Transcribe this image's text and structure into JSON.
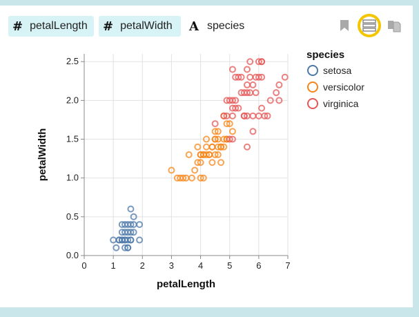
{
  "fields": [
    {
      "type_glyph": "#",
      "name": "petalLength"
    },
    {
      "type_glyph": "#",
      "name": "petalWidth"
    },
    {
      "type_glyph": "A",
      "name": "species"
    }
  ],
  "toolbar": {
    "bookmark_icon": "bookmark-icon",
    "list_icon": "list-view-icon",
    "copy_icon": "copy-icon"
  },
  "chart_data": {
    "type": "scatter",
    "xlabel": "petalLength",
    "ylabel": "petalWidth",
    "xlim": [
      0,
      7
    ],
    "ylim": [
      0,
      2.6
    ],
    "xticks": [
      "0",
      "1",
      "2",
      "3",
      "4",
      "5",
      "6",
      "7"
    ],
    "yticks": [
      "0.0",
      "0.5",
      "1.0",
      "1.5",
      "2.0",
      "2.5"
    ],
    "grid": true,
    "legend": {
      "title": "species",
      "placement": "right"
    },
    "series": [
      {
        "name": "setosa",
        "color": "#4c78a8",
        "points": [
          [
            1.4,
            0.2
          ],
          [
            1.3,
            0.2
          ],
          [
            1.5,
            0.2
          ],
          [
            1.4,
            0.3
          ],
          [
            1.7,
            0.4
          ],
          [
            1.5,
            0.1
          ],
          [
            1.6,
            0.2
          ],
          [
            1.1,
            0.1
          ],
          [
            1.2,
            0.2
          ],
          [
            1.0,
            0.2
          ],
          [
            1.7,
            0.3
          ],
          [
            1.9,
            0.2
          ],
          [
            1.6,
            0.4
          ],
          [
            1.3,
            0.4
          ],
          [
            1.5,
            0.4
          ],
          [
            1.4,
            0.1
          ],
          [
            1.6,
            0.6
          ],
          [
            1.3,
            0.3
          ],
          [
            1.9,
            0.4
          ],
          [
            1.6,
            0.2
          ],
          [
            1.4,
            0.2
          ],
          [
            1.5,
            0.3
          ],
          [
            1.7,
            0.5
          ],
          [
            1.2,
            0.2
          ],
          [
            1.5,
            0.1
          ],
          [
            1.3,
            0.2
          ],
          [
            1.4,
            0.4
          ],
          [
            1.6,
            0.3
          ]
        ]
      },
      {
        "name": "versicolor",
        "color": "#f58518",
        "points": [
          [
            4.7,
            1.4
          ],
          [
            4.5,
            1.5
          ],
          [
            4.9,
            1.5
          ],
          [
            4.0,
            1.3
          ],
          [
            4.6,
            1.5
          ],
          [
            3.3,
            1.0
          ],
          [
            3.9,
            1.4
          ],
          [
            3.5,
            1.0
          ],
          [
            4.2,
            1.5
          ],
          [
            4.0,
            1.0
          ],
          [
            4.7,
            1.4
          ],
          [
            3.6,
            1.3
          ],
          [
            4.4,
            1.4
          ],
          [
            4.5,
            1.5
          ],
          [
            4.1,
            1.0
          ],
          [
            4.8,
            1.8
          ],
          [
            4.0,
            1.3
          ],
          [
            4.9,
            1.5
          ],
          [
            4.7,
            1.2
          ],
          [
            4.3,
            1.3
          ],
          [
            4.4,
            1.4
          ],
          [
            4.8,
            1.4
          ],
          [
            5.0,
            1.7
          ],
          [
            3.8,
            1.1
          ],
          [
            3.7,
            1.0
          ],
          [
            3.9,
            1.2
          ],
          [
            5.1,
            1.6
          ],
          [
            4.5,
            1.6
          ],
          [
            4.6,
            1.4
          ],
          [
            4.4,
            1.2
          ],
          [
            4.1,
            1.3
          ],
          [
            4.0,
            1.2
          ],
          [
            3.0,
            1.1
          ],
          [
            4.2,
            1.3
          ],
          [
            4.1,
            1.3
          ],
          [
            3.4,
            1.0
          ],
          [
            3.2,
            1.0
          ],
          [
            4.3,
            1.3
          ],
          [
            4.6,
            1.3
          ],
          [
            4.9,
            1.7
          ],
          [
            4.5,
            1.3
          ],
          [
            4.6,
            1.6
          ],
          [
            4.2,
            1.4
          ],
          [
            4.8,
            1.5
          ]
        ]
      },
      {
        "name": "virginica",
        "color": "#e45756",
        "points": [
          [
            6.0,
            2.5
          ],
          [
            5.1,
            1.9
          ],
          [
            5.9,
            2.1
          ],
          [
            5.6,
            1.8
          ],
          [
            5.8,
            2.2
          ],
          [
            6.6,
            2.1
          ],
          [
            4.5,
            1.7
          ],
          [
            6.3,
            1.8
          ],
          [
            5.8,
            1.8
          ],
          [
            6.1,
            2.5
          ],
          [
            5.1,
            2.0
          ],
          [
            5.3,
            1.9
          ],
          [
            5.5,
            2.1
          ],
          [
            5.0,
            2.0
          ],
          [
            5.1,
            2.4
          ],
          [
            5.3,
            2.3
          ],
          [
            5.5,
            1.8
          ],
          [
            6.7,
            2.2
          ],
          [
            6.9,
            2.3
          ],
          [
            5.0,
            1.5
          ],
          [
            5.7,
            2.3
          ],
          [
            4.9,
            2.0
          ],
          [
            6.7,
            2.0
          ],
          [
            4.9,
            1.8
          ],
          [
            5.7,
            2.1
          ],
          [
            6.0,
            1.8
          ],
          [
            4.8,
            1.8
          ],
          [
            5.6,
            2.1
          ],
          [
            5.8,
            1.6
          ],
          [
            6.1,
            1.9
          ],
          [
            6.4,
            2.0
          ],
          [
            5.6,
            2.2
          ],
          [
            5.1,
            1.5
          ],
          [
            5.6,
            1.4
          ],
          [
            6.1,
            2.3
          ],
          [
            5.6,
            2.4
          ],
          [
            5.5,
            1.8
          ],
          [
            5.4,
            2.1
          ],
          [
            5.2,
            2.3
          ],
          [
            5.9,
            2.3
          ],
          [
            5.7,
            2.5
          ],
          [
            5.2,
            2.0
          ],
          [
            5.4,
            2.3
          ],
          [
            5.1,
            1.8
          ],
          [
            6.2,
            1.8
          ],
          [
            5.2,
            1.9
          ],
          [
            6.1,
            2.5
          ],
          [
            6.0,
            2.3
          ]
        ]
      }
    ]
  }
}
